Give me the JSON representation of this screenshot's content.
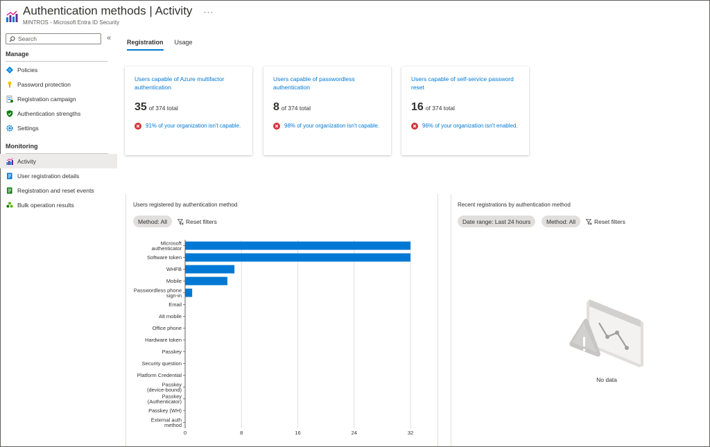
{
  "header": {
    "title": "Authentication methods | Activity",
    "subtitle": "MINTROS - Microsoft Entra ID Security",
    "more": "···"
  },
  "sidebar": {
    "search_placeholder": "Search",
    "collapse": "«",
    "manage_label": "Manage",
    "monitoring_label": "Monitoring",
    "manage_items": [
      {
        "label": "Policies",
        "icon": "diamond-icon"
      },
      {
        "label": "Password protection",
        "icon": "key-icon"
      },
      {
        "label": "Registration campaign",
        "icon": "campaign-icon"
      },
      {
        "label": "Authentication strengths",
        "icon": "shield-icon"
      },
      {
        "label": "Settings",
        "icon": "gear-icon"
      }
    ],
    "monitoring_items": [
      {
        "label": "Activity",
        "icon": "bar-chart-icon"
      },
      {
        "label": "User registration details",
        "icon": "user-details-icon"
      },
      {
        "label": "Registration and reset events",
        "icon": "events-icon"
      },
      {
        "label": "Bulk operation results",
        "icon": "people-icon"
      }
    ]
  },
  "tabs": [
    {
      "label": "Registration",
      "active": true
    },
    {
      "label": "Usage",
      "active": false
    }
  ],
  "cards": [
    {
      "title": "Users capable of Azure multifactor authentication",
      "count": "35",
      "of_total": "of 374 total",
      "warning": "91% of your organization isn't capable."
    },
    {
      "title": "Users capable of passwordless authentication",
      "count": "8",
      "of_total": "of 374 total",
      "warning": "98% of your organization isn't capable."
    },
    {
      "title": "Users capable of self-service password reset",
      "count": "16",
      "of_total": "of 374 total",
      "warning": "96% of your organization isn't enabled."
    }
  ],
  "left_panel": {
    "title": "Users registered by authentication method",
    "method_filter": "Method: All",
    "reset_filters": "Reset filters"
  },
  "right_panel": {
    "title": "Recent registrations by authentication method",
    "date_filter": "Date range: Last 24 hours",
    "method_filter": "Method: All",
    "reset_filters": "Reset filters",
    "no_data": "No data"
  },
  "colors": {
    "accent": "#0078d4",
    "error": "#d13438"
  },
  "chart_data": {
    "type": "bar",
    "orientation": "horizontal",
    "title": "",
    "xlabel": "",
    "ylabel": "",
    "categories": [
      [
        "Microsoft",
        "authenticator"
      ],
      [
        "Software token"
      ],
      [
        "WHFB"
      ],
      [
        "Mobile"
      ],
      [
        "Passwordless phone",
        "sign-in"
      ],
      [
        "Email"
      ],
      [
        "Alt mobile"
      ],
      [
        "Office phone"
      ],
      [
        "Hardware token"
      ],
      [
        "Passkey"
      ],
      [
        "Security question"
      ],
      [
        "Platform Credential"
      ],
      [
        "Passkey",
        "(device-bound)"
      ],
      [
        "Passkey",
        "(Authenticator)"
      ],
      [
        "Passkey (WH)"
      ],
      [
        "External auth",
        "method"
      ]
    ],
    "values": [
      32,
      32,
      7,
      6,
      1,
      0,
      0,
      0,
      0,
      0,
      0,
      0,
      0,
      0,
      0,
      0
    ],
    "xlim": [
      0,
      32
    ],
    "xticks": [
      0,
      8,
      16,
      24,
      32
    ],
    "grid": true,
    "color": "#0078d4"
  }
}
